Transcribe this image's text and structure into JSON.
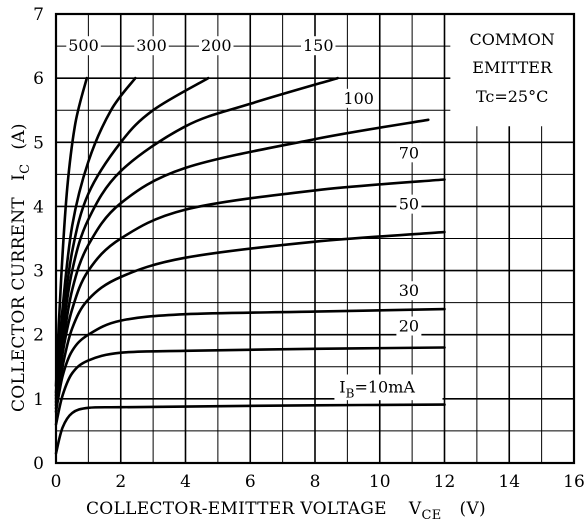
{
  "chart_data": {
    "type": "line",
    "title": "",
    "xlabel": "COLLECTOR-EMITTER VOLTAGE",
    "xlabel_symbol": "V",
    "xlabel_subscript": "CE",
    "xlabel_unit": "(V)",
    "ylabel": "COLLECTOR CURRENT",
    "ylabel_symbol": "I",
    "ylabel_subscript": "C",
    "ylabel_unit": "(A)",
    "xlim": [
      0,
      16
    ],
    "ylim": [
      0,
      7
    ],
    "xticks": [
      "0",
      "2",
      "4",
      "6",
      "8",
      "10",
      "12",
      "14",
      "16"
    ],
    "yticks": [
      "0",
      "1",
      "2",
      "3",
      "4",
      "5",
      "6",
      "7"
    ],
    "grid": true,
    "annotation": {
      "line1": "COMMON",
      "line2": "EMITTER",
      "line3": "Tc=25°C"
    },
    "ib_label": {
      "prefix": "I",
      "sub": "B",
      "suffix": "=10mA"
    },
    "series": [
      {
        "name": "10",
        "label": "",
        "x": [
          0,
          0.2,
          0.5,
          1,
          2,
          4,
          8,
          12
        ],
        "y": [
          0.15,
          0.55,
          0.78,
          0.86,
          0.87,
          0.88,
          0.9,
          0.91
        ]
      },
      {
        "name": "20",
        "label": "20",
        "x": [
          0,
          0.2,
          0.5,
          1,
          2,
          4,
          8,
          12
        ],
        "y": [
          0.6,
          1.05,
          1.4,
          1.6,
          1.72,
          1.75,
          1.78,
          1.8
        ]
      },
      {
        "name": "30",
        "label": "30",
        "x": [
          0,
          0.2,
          0.5,
          1,
          2,
          4,
          8,
          12
        ],
        "y": [
          0.8,
          1.35,
          1.75,
          2.0,
          2.22,
          2.32,
          2.36,
          2.4
        ]
      },
      {
        "name": "50",
        "label": "50",
        "x": [
          0,
          0.2,
          0.5,
          1,
          2,
          4,
          8,
          12
        ],
        "y": [
          0.85,
          1.5,
          2.1,
          2.55,
          2.9,
          3.2,
          3.45,
          3.6
        ]
      },
      {
        "name": "70",
        "label": "70",
        "x": [
          0,
          0.2,
          0.5,
          1,
          2,
          4,
          8,
          12
        ],
        "y": [
          0.9,
          1.7,
          2.4,
          3.0,
          3.5,
          3.95,
          4.25,
          4.42
        ]
      },
      {
        "name": "100",
        "label": "100",
        "x": [
          0,
          0.2,
          0.5,
          1,
          2,
          4,
          8,
          11.5
        ],
        "y": [
          0.95,
          1.8,
          2.7,
          3.4,
          4.05,
          4.6,
          5.05,
          5.35
        ]
      },
      {
        "name": "150",
        "label": "150",
        "x": [
          0,
          0.2,
          0.5,
          1,
          2,
          4,
          6,
          8.7
        ],
        "y": [
          1.0,
          2.0,
          3.0,
          3.8,
          4.55,
          5.25,
          5.6,
          6.0
        ]
      },
      {
        "name": "200",
        "label": "200",
        "x": [
          0,
          0.2,
          0.5,
          1,
          2,
          3,
          4.7
        ],
        "y": [
          1.05,
          2.15,
          3.3,
          4.2,
          5.0,
          5.5,
          6.0
        ]
      },
      {
        "name": "300",
        "label": "300",
        "x": [
          0,
          0.2,
          0.5,
          1,
          1.7,
          2.45
        ],
        "y": [
          1.1,
          2.4,
          3.7,
          4.7,
          5.5,
          6.0
        ]
      },
      {
        "name": "500",
        "label": "500",
        "x": [
          0,
          0.15,
          0.35,
          0.6,
          0.95
        ],
        "y": [
          1.2,
          2.8,
          4.3,
          5.3,
          6.0
        ]
      }
    ]
  }
}
